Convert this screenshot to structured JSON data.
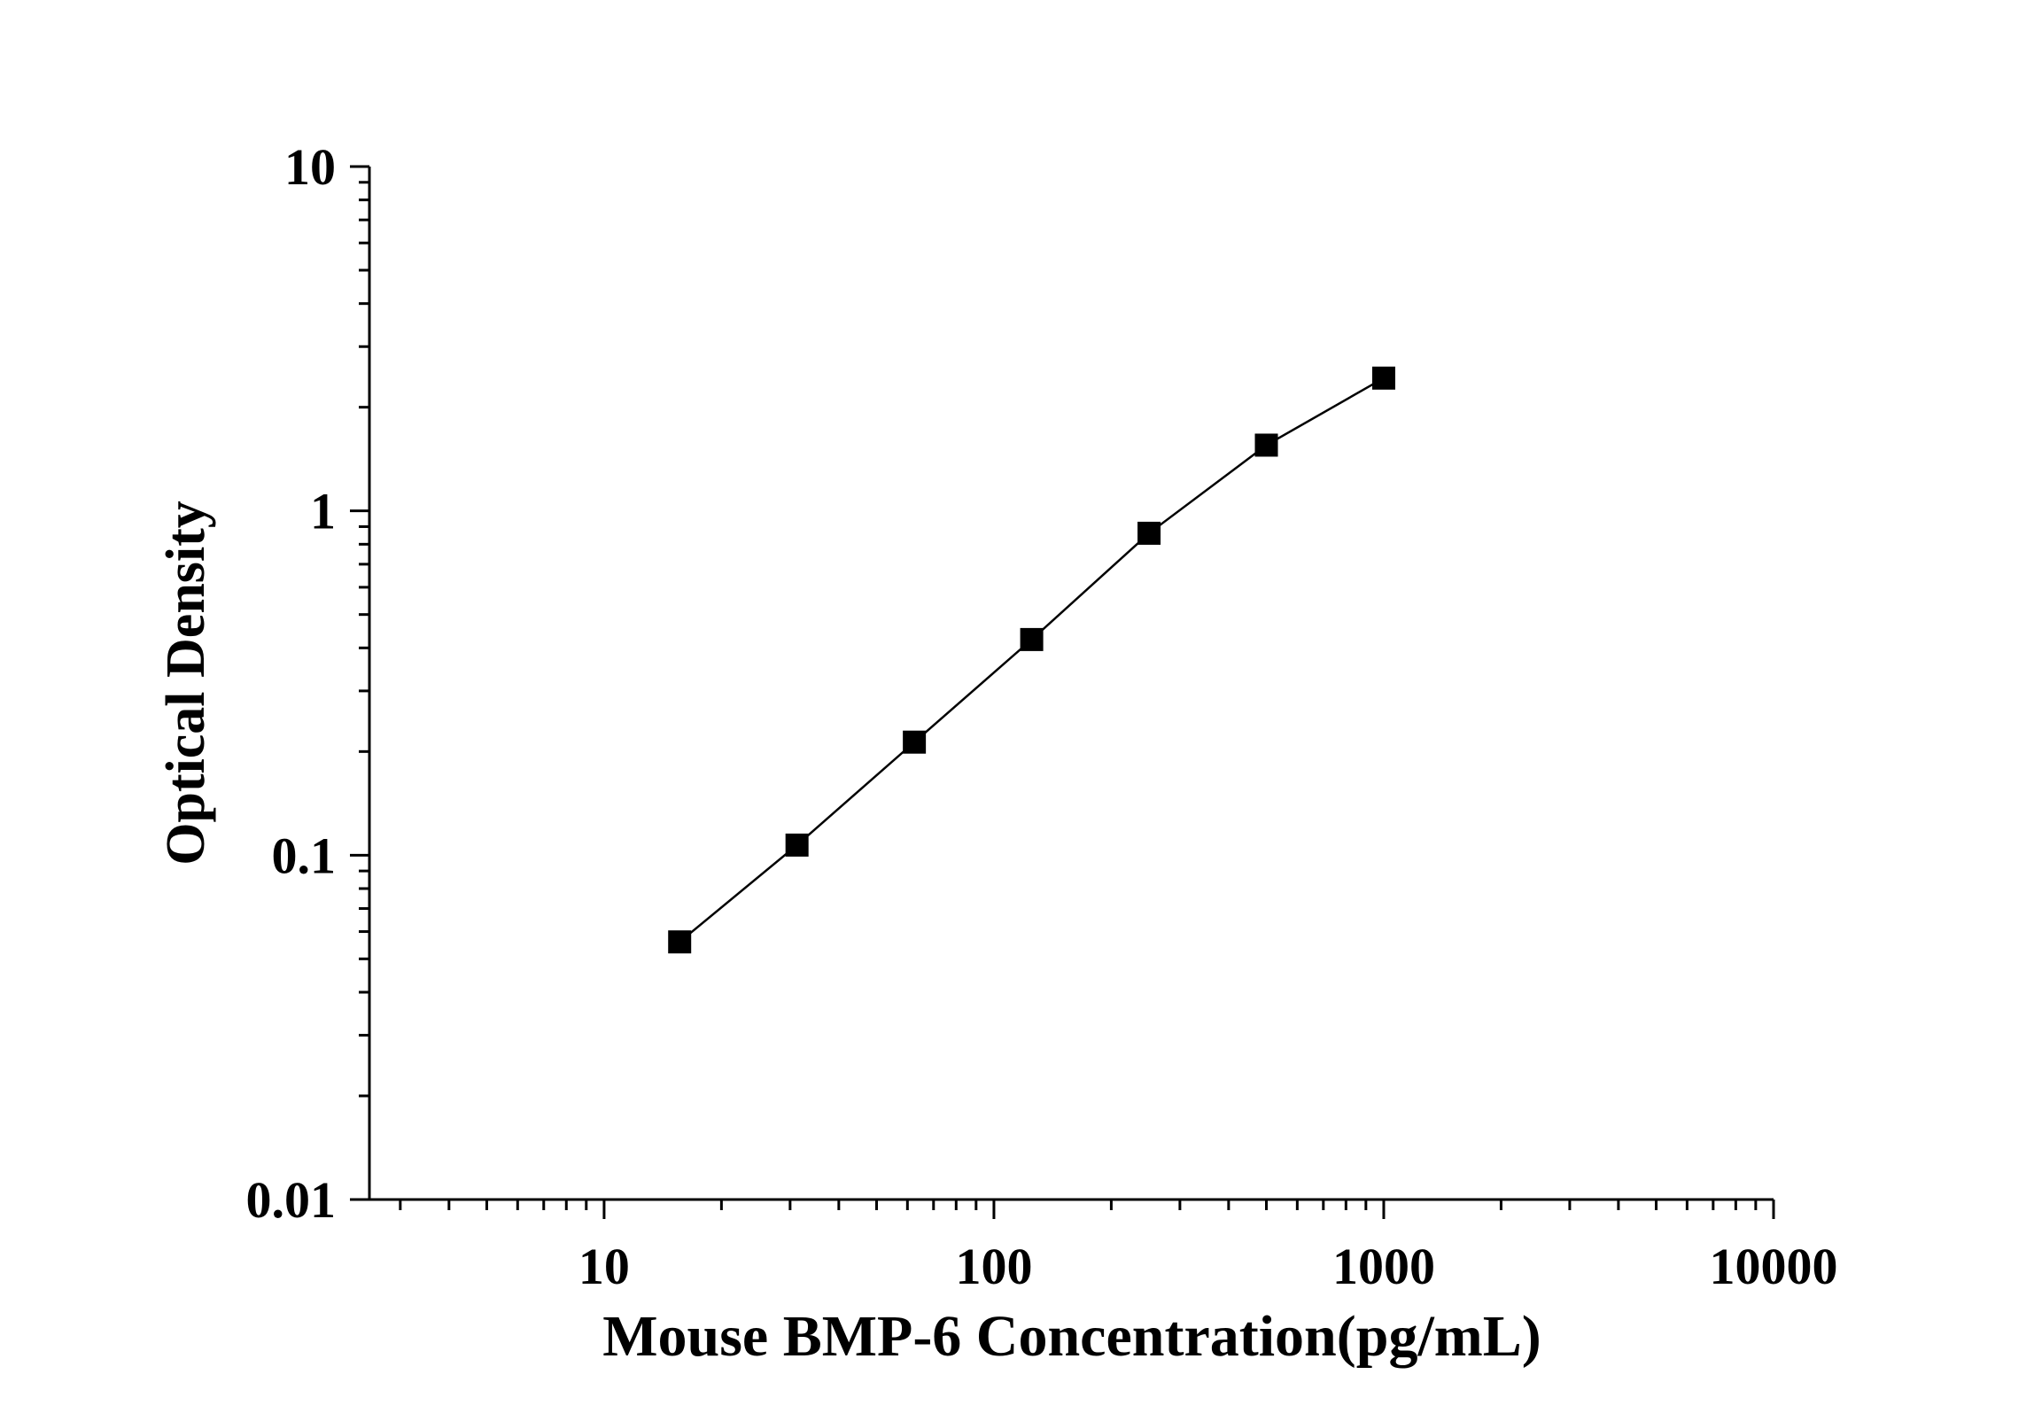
{
  "chart_data": {
    "type": "line",
    "title": "",
    "xlabel": "Mouse BMP-6 Concentration(pg/mL)",
    "ylabel": "Optical Density",
    "x_scale": "log",
    "y_scale": "log",
    "xlim": [
      2.5,
      10000
    ],
    "ylim": [
      0.01,
      10
    ],
    "x_ticks": [
      10,
      100,
      1000,
      10000
    ],
    "x_tick_labels": [
      "10",
      "100",
      "1000",
      "10000"
    ],
    "y_ticks": [
      0.01,
      0.1,
      1,
      10
    ],
    "y_tick_labels": [
      "0.01",
      "0.1",
      "1",
      "10"
    ],
    "grid": false,
    "marker": "square",
    "color": "#000000",
    "series": [
      {
        "x": [
          15.625,
          31.25,
          62.5,
          125,
          250,
          500,
          1000
        ],
        "y": [
          0.056,
          0.107,
          0.213,
          0.423,
          0.861,
          1.552,
          2.43
        ]
      }
    ]
  }
}
